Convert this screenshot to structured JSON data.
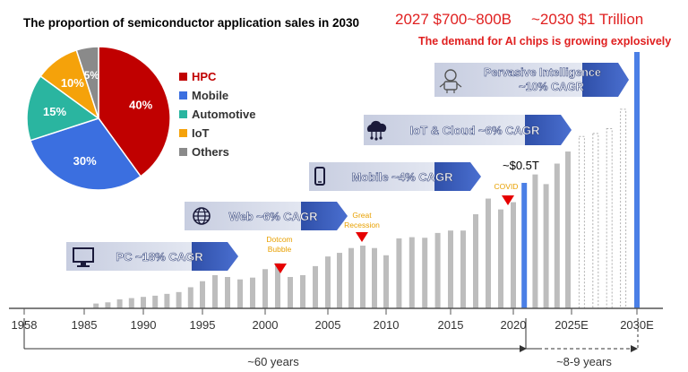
{
  "pie": {
    "title": "The proportion of semiconductor application sales in 2030"
  },
  "headline": {
    "value_2027": "2027 $700~800B",
    "value_2030": "~2030 $1 Trillion",
    "subtitle": "The demand for AI chips is growing explosively"
  },
  "eras": [
    {
      "label": "PC ~18% CAGR",
      "icon": "monitor-icon"
    },
    {
      "label": "Web ~6% CAGR",
      "icon": "globe-icon"
    },
    {
      "label": "Mobile ~4% CAGR",
      "icon": "smartphone-icon"
    },
    {
      "label": "IoT & Cloud ~6% CAGR",
      "icon": "cloud-icon"
    },
    {
      "label": "Pervasive Intelligence",
      "label2": "~10% CAGR",
      "icon": "robot-icon"
    }
  ],
  "annotations": {
    "dotcom": "Dotcom Bubble",
    "recession": "Great Recession",
    "covid": "COVID",
    "half_trillion": "~$0.5T"
  },
  "spans": {
    "sixty": "~60 years",
    "eight_nine": "~8-9 years"
  },
  "colors": {
    "hpc": "#c00000",
    "mobile": "#3b6fe0",
    "automotive": "#2ab5a0",
    "iot": "#f5a20a",
    "others": "#8a8a8a",
    "bar": "#bdbdbd",
    "bar_current": "#4a7fe6",
    "headline_red": "#e02020",
    "annotation_orange": "#e8a000",
    "marker_red": "#e60000",
    "era_box": "#dfe3ef"
  },
  "chart_data": [
    {
      "type": "pie",
      "title": "The proportion of semiconductor application sales in 2030",
      "slices": [
        {
          "label": "HPC",
          "value": 40,
          "display": "40%"
        },
        {
          "label": "Mobile",
          "value": 30,
          "display": "30%"
        },
        {
          "label": "Automotive",
          "value": 15,
          "display": "15%"
        },
        {
          "label": "IoT",
          "value": 10,
          "display": "10%"
        },
        {
          "label": "Others",
          "value": 5,
          "display": "5%"
        }
      ],
      "legend": "right"
    },
    {
      "type": "bar",
      "xlabel": "",
      "ylabel": "",
      "x_ticks": [
        "1958",
        "1985",
        "1990",
        "1995",
        "2000",
        "2005",
        "2010",
        "2015",
        "2020",
        "2025E",
        "2030E"
      ],
      "years": [
        1986,
        1987,
        1988,
        1989,
        1990,
        1991,
        1992,
        1993,
        1994,
        1995,
        1996,
        1997,
        1998,
        1999,
        2000,
        2001,
        2002,
        2003,
        2004,
        2005,
        2006,
        2007,
        2008,
        2009,
        2010,
        2011,
        2012,
        2013,
        2014,
        2015,
        2016,
        2017,
        2018,
        2019,
        2020,
        2021,
        2022,
        2023,
        2024,
        2025,
        2026,
        2027,
        2028,
        2029,
        2030
      ],
      "values": [
        8,
        10,
        15,
        17,
        19,
        21,
        24,
        27,
        35,
        45,
        55,
        52,
        48,
        51,
        65,
        75,
        52,
        55,
        70,
        86,
        92,
        100,
        104,
        100,
        88,
        116,
        118,
        117,
        125,
        129,
        129,
        156,
        182,
        164,
        176,
        208,
        222,
        206,
        240,
        260,
        285,
        290,
        298,
        330,
        425
      ],
      "estimated": [
        false,
        false,
        false,
        false,
        false,
        false,
        false,
        false,
        false,
        false,
        false,
        false,
        false,
        false,
        false,
        false,
        false,
        false,
        false,
        false,
        false,
        false,
        false,
        false,
        false,
        false,
        false,
        false,
        false,
        false,
        false,
        false,
        false,
        false,
        false,
        false,
        false,
        false,
        true,
        true,
        true,
        true,
        true,
        true,
        true
      ],
      "highlight": [
        false,
        false,
        false,
        false,
        false,
        false,
        false,
        false,
        false,
        false,
        false,
        false,
        false,
        false,
        false,
        false,
        false,
        false,
        false,
        false,
        false,
        false,
        false,
        false,
        false,
        false,
        false,
        false,
        false,
        false,
        false,
        false,
        false,
        false,
        false,
        true,
        false,
        false,
        false,
        false,
        false,
        false,
        false,
        false,
        true
      ]
    }
  ]
}
